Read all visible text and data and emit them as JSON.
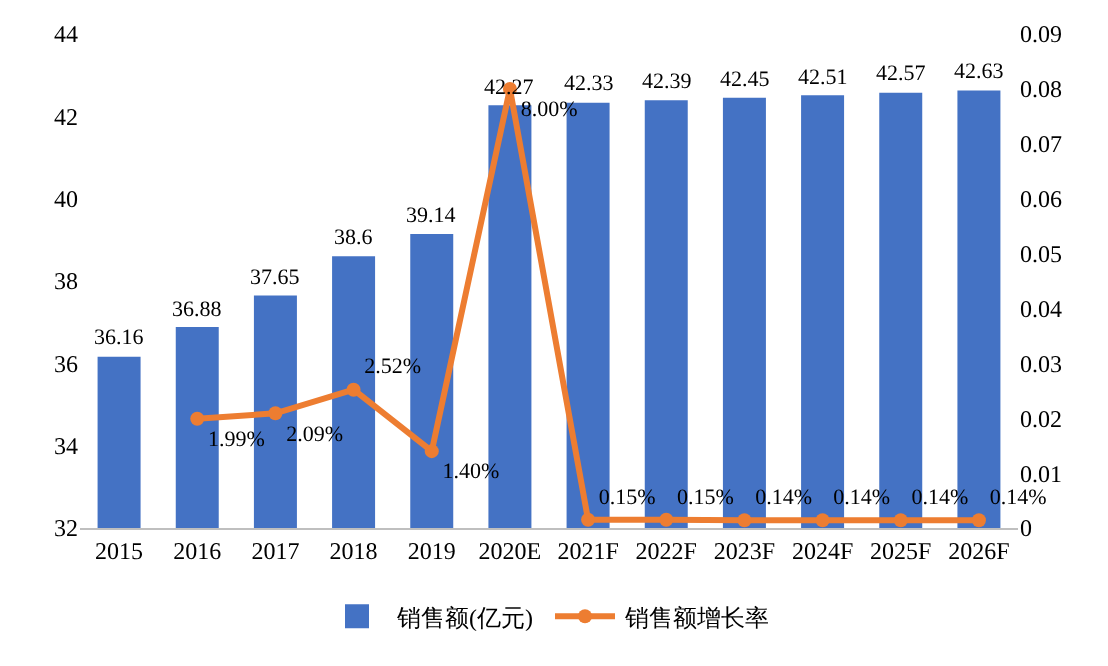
{
  "chart_data": {
    "type": "bar",
    "categories": [
      "2015",
      "2016",
      "2017",
      "2018",
      "2019",
      "2020E",
      "2021F",
      "2022F",
      "2023F",
      "2024F",
      "2025F",
      "2026F"
    ],
    "series": [
      {
        "name": "销售额(亿元)",
        "color": "#4472c4",
        "values": [
          36.16,
          36.88,
          37.65,
          38.6,
          39.14,
          42.27,
          42.33,
          42.39,
          42.45,
          42.51,
          42.57,
          42.63
        ],
        "data_labels": true
      },
      {
        "name": "销售额增长率",
        "type": "line",
        "axis": "y2",
        "color": "#ed7d31",
        "marker": "circle",
        "values": [
          null,
          0.0199,
          0.0209,
          0.0252,
          0.014,
          0.08,
          0.0015,
          0.0015,
          0.0014,
          0.0014,
          0.0014,
          0.0014
        ],
        "value_labels": [
          null,
          "1.99%",
          "2.09%",
          "2.52%",
          "1.40%",
          "8.00%",
          "0.15%",
          "0.15%",
          "0.14%",
          "0.14%",
          "0.14%",
          "0.14%"
        ]
      }
    ],
    "ylim": [
      32,
      44
    ],
    "yticks": [
      32,
      34,
      36,
      38,
      40,
      42,
      44
    ],
    "y2lim": [
      0,
      0.09
    ],
    "y2ticks": [
      0,
      0.01,
      0.02,
      0.03,
      0.04,
      0.05,
      0.06,
      0.07,
      0.08,
      0.09
    ],
    "grid": false,
    "legend": "bottom"
  }
}
